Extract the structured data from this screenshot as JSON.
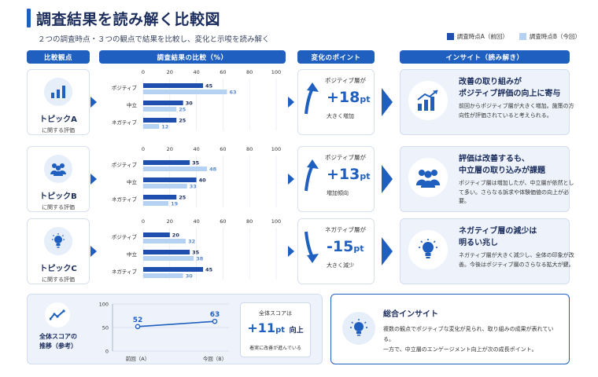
{
  "title": "調査結果を読み解く比較図",
  "subtitle": "２つの調査時点・３つの観点で結果を比較し、変化と示唆を読み解く",
  "legend": {
    "a": "調査時点A（前回）",
    "b": "調査時点B（今回）"
  },
  "colors": {
    "a": "#1e4fae",
    "b": "#b6d2f2",
    "accent": "#1f5fbf"
  },
  "headers": {
    "viewpoint": "比較観点",
    "comparison": "調査結果の比較（%）",
    "change": "変化のポイント",
    "insight": "インサイト（読み解き）"
  },
  "topics": [
    {
      "name": "トピックA",
      "sub": "に関する評価",
      "icon": "bar-chart-icon"
    },
    {
      "name": "トピックB",
      "sub": "に関する評価",
      "icon": "people-icon"
    },
    {
      "name": "トピックC",
      "sub": "に関する評価",
      "icon": "lightbulb-icon"
    }
  ],
  "changes": [
    {
      "label": "ポジティブ層が",
      "value": "+18",
      "unit": "pt",
      "desc": "大きく増加",
      "direction": "up"
    },
    {
      "label": "ポジティブ層が",
      "value": "+13",
      "unit": "pt",
      "desc": "増加傾向",
      "direction": "up"
    },
    {
      "label": "ネガティブ層が",
      "value": "-15",
      "unit": "pt",
      "desc": "大きく減少",
      "direction": "down"
    }
  ],
  "insights": [
    {
      "title": "改善の取り組みが\nポジティブ評価の向上に寄与",
      "title1": "改善の取り組みが",
      "title2": "ポジティブ評価の向上に寄与",
      "body": "前回からポジティブ層が大きく増加。施策の方向性が評価されていると考えられる。",
      "icon": "growth-chart-icon"
    },
    {
      "title1": "評価は改善するも、",
      "title2": "中立層の取り込みが課題",
      "body": "ポジティブ層は増加したが、中立層が依然として多い。さらなる訴求や体験価値の向上が必要。",
      "icon": "group-icon"
    },
    {
      "title1": "ネガティブ層の減少は",
      "title2": "明るい兆し",
      "body": "ネガティブ層が大きく減少し、全体の印象が改善。今後はポジティブ層のさらなる拡大が鍵。",
      "icon": "lightbulb-icon"
    }
  ],
  "chart_data": [
    {
      "type": "bar",
      "orientation": "horizontal",
      "categories": [
        "ポジティブ",
        "中立",
        "ネガティブ"
      ],
      "series": [
        {
          "name": "調査時点A（前回）",
          "values": [
            45,
            30,
            25
          ]
        },
        {
          "name": "調査時点B（今回）",
          "values": [
            63,
            25,
            12
          ]
        }
      ],
      "xlim": [
        0,
        100
      ],
      "ticks": [
        0,
        20,
        40,
        60,
        80,
        100
      ]
    },
    {
      "type": "bar",
      "orientation": "horizontal",
      "categories": [
        "ポジティブ",
        "中立",
        "ネガティブ"
      ],
      "series": [
        {
          "name": "調査時点A（前回）",
          "values": [
            35,
            40,
            25
          ]
        },
        {
          "name": "調査時点B（今回）",
          "values": [
            48,
            33,
            19
          ]
        }
      ],
      "xlim": [
        0,
        100
      ],
      "ticks": [
        0,
        20,
        40,
        60,
        80,
        100
      ]
    },
    {
      "type": "bar",
      "orientation": "horizontal",
      "categories": [
        "ポジティブ",
        "中立",
        "ネガティブ"
      ],
      "series": [
        {
          "name": "調査時点A（前回）",
          "values": [
            20,
            35,
            45
          ]
        },
        {
          "name": "調査時点B（今回）",
          "values": [
            32,
            38,
            30
          ]
        }
      ],
      "xlim": [
        0,
        100
      ],
      "ticks": [
        0,
        20,
        40,
        60,
        80,
        100
      ]
    },
    {
      "type": "line",
      "categories": [
        "前回（A）",
        "今回（B）"
      ],
      "values": [
        52,
        63
      ],
      "ylim": [
        0,
        100
      ],
      "yticks": [
        0,
        50,
        100
      ]
    }
  ],
  "trend": {
    "title1": "全体スコアの",
    "title2": "推移（参考）",
    "icon": "trend-line-icon"
  },
  "total": {
    "label": "全体スコアは",
    "value": "+11",
    "unit": "pt",
    "suffix": "向上",
    "desc": "着実に改善が進んでいる"
  },
  "summary": {
    "title": "総合インサイト",
    "body1": "複数の観点でポジティブな変化が見られ、取り組みの成果が表れている。",
    "body2": "一方で、中立層のエンゲージメント向上が次の成長ポイント。",
    "icon": "lightbulb-icon"
  }
}
